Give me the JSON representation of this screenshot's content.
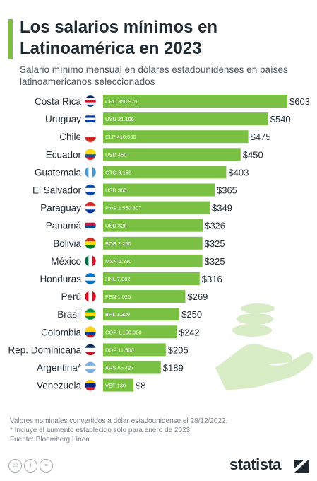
{
  "header": {
    "title": "Los salarios mínimos en Latinoamérica en 2023",
    "subtitle": "Salario mínimo mensual en dólares estadounidenses en países latinoamericanos seleccionados"
  },
  "colors": {
    "accent": "#7ac143",
    "bar": "#7ac143",
    "text": "#1f2a33",
    "muted": "#7a8088",
    "illustration": "#d8ecc6"
  },
  "chart_data": {
    "type": "bar",
    "orientation": "horizontal",
    "unit": "$",
    "categories": [
      "Costa Rica",
      "Uruguay",
      "Chile",
      "Ecuador",
      "Guatemala",
      "El Salvador",
      "Paraguay",
      "Panamá",
      "Bolivia",
      "México",
      "Honduras",
      "Perú",
      "Brasil",
      "Colombia",
      "Rep. Dominicana",
      "Argentina*",
      "Venezuela"
    ],
    "values": [
      603,
      540,
      475,
      450,
      403,
      365,
      349,
      326,
      325,
      325,
      316,
      269,
      250,
      242,
      205,
      189,
      8
    ],
    "value_labels": [
      "$603",
      "$540",
      "$475",
      "$450",
      "$403",
      "$365",
      "$349",
      "$326",
      "$325",
      "$325",
      "$316",
      "$269",
      "$250",
      "$242",
      "$205",
      "$189",
      "$8"
    ],
    "local_currency_labels": [
      "CRC 350.975",
      "UYU 21.106",
      "CLP 410.000",
      "USD 450",
      "GTQ 3.166",
      "USD 365",
      "PYG 2.550.307",
      "USD 326",
      "BOB 2.250",
      "MXN 6.310",
      "HNL 7.802",
      "PEN 1.025",
      "BRL 1.320",
      "COP 1.160.000",
      "DOP 11.500",
      "ARS 65.427",
      "VEF 130"
    ],
    "flags": [
      "costa-rica-flag",
      "uruguay-flag",
      "chile-flag",
      "ecuador-flag",
      "guatemala-flag",
      "el-salvador-flag",
      "paraguay-flag",
      "panama-flag",
      "bolivia-flag",
      "mexico-flag",
      "honduras-flag",
      "peru-flag",
      "brasil-flag",
      "colombia-flag",
      "rep-dominicana-flag",
      "argentina-flag",
      "venezuela-flag"
    ],
    "xlim": [
      0,
      603
    ],
    "grid": false,
    "legend": "none"
  },
  "footnotes": {
    "line1": "Valores nominales convertidos a dólar estadounidense el 28/12/2022.",
    "line2": "* Incluye el aumento establecido sólo para enero de 2023.",
    "line3": "Fuente: Bloomberg Línea"
  },
  "footer": {
    "cc_icons": [
      "cc-icon",
      "attribution-icon",
      "no-derivatives-icon"
    ],
    "cc_label": "cc",
    "by_label": "i",
    "nd_label": "=",
    "brand": "statista"
  }
}
